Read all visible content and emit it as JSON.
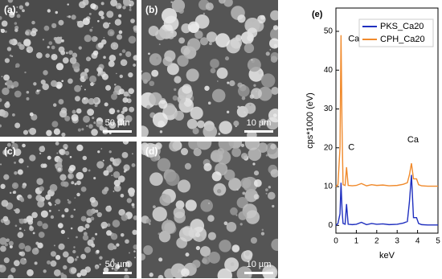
{
  "panels": [
    {
      "label": "(a)",
      "scale_bar": "50 µm"
    },
    {
      "label": "(b)",
      "scale_bar": "10 µm"
    },
    {
      "label": "(c)",
      "scale_bar": "50 µm"
    },
    {
      "label": "(d)",
      "scale_bar": "10 µm"
    }
  ],
  "chart_data": {
    "type": "line",
    "title": "(e)",
    "x_label": "keV",
    "y_label": "cps*1000 (eV)",
    "x": [
      0,
      0.1,
      0.2,
      0.25,
      0.3,
      0.35,
      0.45,
      0.52,
      0.6,
      0.8,
      1.0,
      1.25,
      1.5,
      1.75,
      2.0,
      2.3,
      2.6,
      3.0,
      3.3,
      3.5,
      3.6,
      3.7,
      3.8,
      3.95,
      4.05,
      4.2,
      4.5,
      5.0
    ],
    "series": [
      {
        "name": "PKS_Ca20",
        "color": "#1f2fbf",
        "values": [
          0,
          0.5,
          3,
          11,
          4,
          0.5,
          0.3,
          5.5,
          0.3,
          0.2,
          0.3,
          0.8,
          0.2,
          0.5,
          0.3,
          0.4,
          0.2,
          0.3,
          0.6,
          1,
          6,
          13,
          2,
          2,
          0.5,
          0.2,
          0.1,
          0.1
        ]
      },
      {
        "name": "CPH_Ca20",
        "color": "#f08a2c",
        "values": [
          10,
          10.5,
          20,
          49,
          25,
          10.5,
          10.3,
          15,
          10.3,
          10.2,
          10.3,
          10.8,
          10.2,
          10.5,
          10.3,
          10.4,
          10.2,
          10.3,
          10.6,
          11,
          13,
          16,
          12,
          12,
          10.5,
          10.2,
          10.1,
          10.1
        ]
      }
    ],
    "annotations": [
      {
        "text": "Ca",
        "x": 0.6,
        "y": 48
      },
      {
        "text": "C",
        "x": 0.6,
        "y": 20
      },
      {
        "text": "Ca",
        "x": 3.5,
        "y": 22
      }
    ],
    "xlim": [
      0,
      5
    ],
    "xticks": [
      0,
      1,
      2,
      3,
      4,
      5
    ],
    "ylim": [
      -2,
      56
    ],
    "yticks": [
      0,
      10,
      20,
      30,
      40,
      50
    ],
    "legend": "upper-right",
    "grid": false
  }
}
